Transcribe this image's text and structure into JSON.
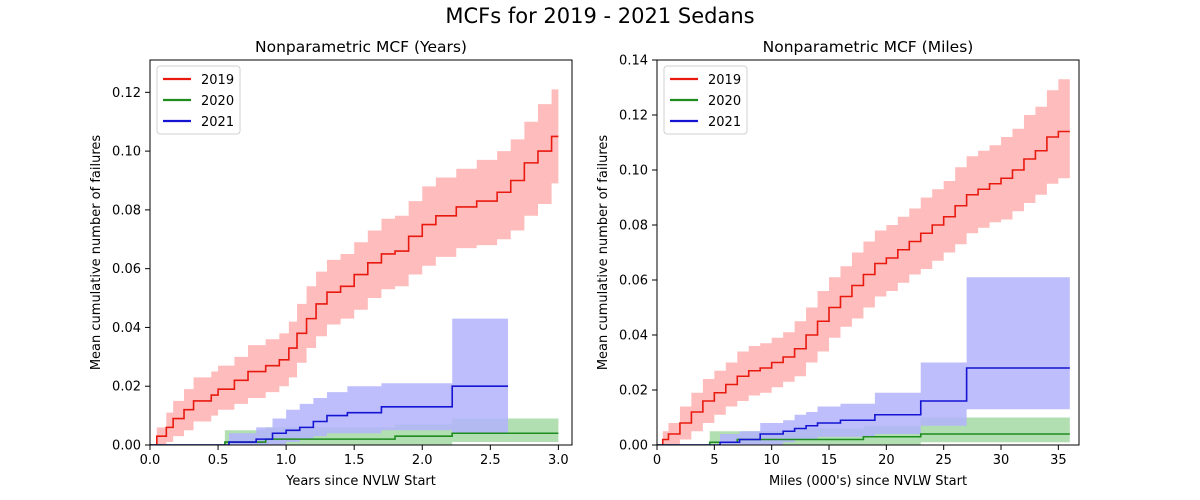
{
  "figure_title": "MCFs for 2019 - 2021 Sedans",
  "chart_data": [
    {
      "type": "line",
      "title": "Nonparametric MCF (Years)",
      "xlabel": "Years since NVLW Start",
      "ylabel": "Mean cumulative number of failures",
      "xlim": [
        0.0,
        3.1
      ],
      "ylim": [
        0.0,
        0.131
      ],
      "xticks": [
        0.0,
        0.5,
        1.0,
        1.5,
        2.0,
        2.5,
        3.0
      ],
      "xtick_labels": [
        "0.0",
        "0.5",
        "1.0",
        "1.5",
        "2.0",
        "2.5",
        "3.0"
      ],
      "yticks": [
        0.0,
        0.02,
        0.04,
        0.06,
        0.08,
        0.1,
        0.12
      ],
      "ytick_labels": [
        "0.00",
        "0.02",
        "0.04",
        "0.06",
        "0.08",
        "0.10",
        "0.12"
      ],
      "legend_position": "top-left",
      "series": [
        {
          "name": "2019",
          "color": "#e8190f",
          "band_color": "#ffb0b0",
          "step_end_x": 3.0,
          "points": [
            [
              0,
              0
            ],
            [
              0.05,
              0.003
            ],
            [
              0.12,
              0.006
            ],
            [
              0.17,
              0.009
            ],
            [
              0.25,
              0.012
            ],
            [
              0.32,
              0.015
            ],
            [
              0.45,
              0.017
            ],
            [
              0.5,
              0.019
            ],
            [
              0.62,
              0.022
            ],
            [
              0.72,
              0.025
            ],
            [
              0.85,
              0.027
            ],
            [
              0.95,
              0.029
            ],
            [
              1.02,
              0.033
            ],
            [
              1.08,
              0.038
            ],
            [
              1.15,
              0.043
            ],
            [
              1.22,
              0.048
            ],
            [
              1.3,
              0.052
            ],
            [
              1.4,
              0.054
            ],
            [
              1.5,
              0.058
            ],
            [
              1.6,
              0.062
            ],
            [
              1.7,
              0.065
            ],
            [
              1.8,
              0.066
            ],
            [
              1.9,
              0.071
            ],
            [
              2.0,
              0.075
            ],
            [
              2.1,
              0.078
            ],
            [
              2.25,
              0.081
            ],
            [
              2.4,
              0.083
            ],
            [
              2.55,
              0.086
            ],
            [
              2.65,
              0.09
            ],
            [
              2.75,
              0.096
            ],
            [
              2.85,
              0.1
            ],
            [
              2.95,
              0.105
            ]
          ],
          "band_lower": [
            0,
            0,
            0.001,
            0.003,
            0.005,
            0.008,
            0.01,
            0.012,
            0.014,
            0.016,
            0.018,
            0.02,
            0.023,
            0.028,
            0.033,
            0.037,
            0.041,
            0.043,
            0.046,
            0.05,
            0.053,
            0.054,
            0.058,
            0.061,
            0.064,
            0.067,
            0.068,
            0.07,
            0.073,
            0.078,
            0.082,
            0.089
          ],
          "band_upper": [
            0,
            0.006,
            0.011,
            0.015,
            0.019,
            0.023,
            0.025,
            0.027,
            0.03,
            0.034,
            0.036,
            0.038,
            0.042,
            0.048,
            0.054,
            0.059,
            0.063,
            0.065,
            0.069,
            0.073,
            0.077,
            0.078,
            0.083,
            0.088,
            0.091,
            0.094,
            0.097,
            0.1,
            0.104,
            0.11,
            0.116,
            0.121
          ]
        },
        {
          "name": "2020",
          "color": "#1e8c1e",
          "band_color": "#a5d9a5",
          "step_end_x": 3.0,
          "points": [
            [
              0,
              0
            ],
            [
              0.52,
              0.0
            ],
            [
              0.55,
              0.001
            ],
            [
              0.85,
              0.002
            ],
            [
              1.3,
              0.002
            ],
            [
              1.8,
              0.003
            ],
            [
              2.22,
              0.004
            ]
          ],
          "band_lower": [
            0,
            0,
            0,
            0,
            0,
            0,
            0.001
          ],
          "band_upper": [
            0,
            0,
            0.005,
            0.006,
            0.006,
            0.007,
            0.009
          ]
        },
        {
          "name": "2021",
          "color": "#1414d2",
          "band_color": "#b3b3fb",
          "step_end_x": 2.63,
          "points": [
            [
              0,
              0
            ],
            [
              0.55,
              0.0
            ],
            [
              0.58,
              0.001
            ],
            [
              0.78,
              0.002
            ],
            [
              0.9,
              0.004
            ],
            [
              1.0,
              0.005
            ],
            [
              1.1,
              0.006
            ],
            [
              1.2,
              0.008
            ],
            [
              1.3,
              0.01
            ],
            [
              1.45,
              0.011
            ],
            [
              1.7,
              0.013
            ],
            [
              2.22,
              0.02
            ]
          ],
          "band_lower": [
            0,
            0,
            0,
            0,
            0,
            0.001,
            0.002,
            0.003,
            0.004,
            0.004,
            0.005,
            0.004
          ],
          "band_upper": [
            0,
            0,
            0.004,
            0.006,
            0.009,
            0.012,
            0.014,
            0.016,
            0.018,
            0.02,
            0.021,
            0.043
          ]
        }
      ]
    },
    {
      "type": "line",
      "title": "Nonparametric MCF (Miles)",
      "xlabel": "Miles (000's) since NVLW Start",
      "ylabel": "Mean cumulative number of failures",
      "xlim": [
        0,
        36.8
      ],
      "ylim": [
        0.0,
        0.14
      ],
      "xticks": [
        0,
        5,
        10,
        15,
        20,
        25,
        30,
        35
      ],
      "xtick_labels": [
        "0",
        "5",
        "10",
        "15",
        "20",
        "25",
        "30",
        "35"
      ],
      "yticks": [
        0.0,
        0.02,
        0.04,
        0.06,
        0.08,
        0.1,
        0.12,
        0.14
      ],
      "ytick_labels": [
        "0.00",
        "0.02",
        "0.04",
        "0.06",
        "0.08",
        "0.10",
        "0.12",
        "0.14"
      ],
      "legend_position": "top-left",
      "series": [
        {
          "name": "2019",
          "color": "#e8190f",
          "band_color": "#ffb0b0",
          "step_end_x": 36,
          "points": [
            [
              0,
              0
            ],
            [
              0.5,
              0.002
            ],
            [
              1,
              0.004
            ],
            [
              2,
              0.008
            ],
            [
              3,
              0.012
            ],
            [
              4,
              0.016
            ],
            [
              5,
              0.019
            ],
            [
              6,
              0.022
            ],
            [
              7,
              0.025
            ],
            [
              8,
              0.027
            ],
            [
              9,
              0.028
            ],
            [
              10,
              0.03
            ],
            [
              11,
              0.032
            ],
            [
              12,
              0.035
            ],
            [
              13,
              0.04
            ],
            [
              14,
              0.045
            ],
            [
              15,
              0.05
            ],
            [
              16,
              0.054
            ],
            [
              17,
              0.058
            ],
            [
              18,
              0.062
            ],
            [
              19,
              0.066
            ],
            [
              20,
              0.068
            ],
            [
              21,
              0.071
            ],
            [
              22,
              0.074
            ],
            [
              23,
              0.077
            ],
            [
              24,
              0.08
            ],
            [
              25,
              0.083
            ],
            [
              26,
              0.087
            ],
            [
              27,
              0.091
            ],
            [
              28,
              0.093
            ],
            [
              29,
              0.095
            ],
            [
              30,
              0.097
            ],
            [
              31,
              0.1
            ],
            [
              32,
              0.104
            ],
            [
              33,
              0.107
            ],
            [
              34,
              0.112
            ],
            [
              35,
              0.114
            ]
          ],
          "band_lower": [
            0,
            0,
            0,
            0.002,
            0.005,
            0.008,
            0.011,
            0.014,
            0.016,
            0.018,
            0.019,
            0.021,
            0.023,
            0.025,
            0.03,
            0.034,
            0.039,
            0.043,
            0.046,
            0.05,
            0.054,
            0.056,
            0.059,
            0.062,
            0.064,
            0.067,
            0.07,
            0.073,
            0.077,
            0.079,
            0.081,
            0.082,
            0.085,
            0.088,
            0.091,
            0.095,
            0.097
          ],
          "band_upper": [
            0,
            0.005,
            0.008,
            0.014,
            0.019,
            0.024,
            0.027,
            0.03,
            0.034,
            0.036,
            0.037,
            0.039,
            0.041,
            0.045,
            0.05,
            0.056,
            0.061,
            0.065,
            0.07,
            0.074,
            0.078,
            0.08,
            0.083,
            0.086,
            0.09,
            0.093,
            0.096,
            0.101,
            0.105,
            0.107,
            0.109,
            0.112,
            0.115,
            0.12,
            0.123,
            0.129,
            0.133
          ]
        },
        {
          "name": "2020",
          "color": "#1e8c1e",
          "band_color": "#a5d9a5",
          "step_end_x": 36,
          "points": [
            [
              0,
              0
            ],
            [
              4.3,
              0.0
            ],
            [
              4.6,
              0.001
            ],
            [
              7,
              0.002
            ],
            [
              12,
              0.002
            ],
            [
              18,
              0.003
            ],
            [
              23,
              0.004
            ]
          ],
          "band_lower": [
            0,
            0,
            0,
            0,
            0,
            0,
            0.001
          ],
          "band_upper": [
            0,
            0,
            0.005,
            0.005,
            0.006,
            0.007,
            0.01
          ]
        },
        {
          "name": "2021",
          "color": "#1414d2",
          "band_color": "#b3b3fb",
          "step_end_x": 36,
          "points": [
            [
              0,
              0
            ],
            [
              5.2,
              0.0
            ],
            [
              5.5,
              0.001
            ],
            [
              7.2,
              0.002
            ],
            [
              9,
              0.004
            ],
            [
              11,
              0.005
            ],
            [
              12,
              0.006
            ],
            [
              13,
              0.007
            ],
            [
              14,
              0.008
            ],
            [
              16,
              0.009
            ],
            [
              19,
              0.011
            ],
            [
              23,
              0.016
            ],
            [
              27,
              0.028
            ]
          ],
          "band_lower": [
            0,
            0,
            0,
            0,
            0,
            0.001,
            0.002,
            0.002,
            0.003,
            0.003,
            0.004,
            0.007,
            0.013
          ],
          "band_upper": [
            0,
            0,
            0.004,
            0.005,
            0.008,
            0.009,
            0.011,
            0.012,
            0.014,
            0.015,
            0.019,
            0.03,
            0.061
          ]
        }
      ]
    }
  ]
}
